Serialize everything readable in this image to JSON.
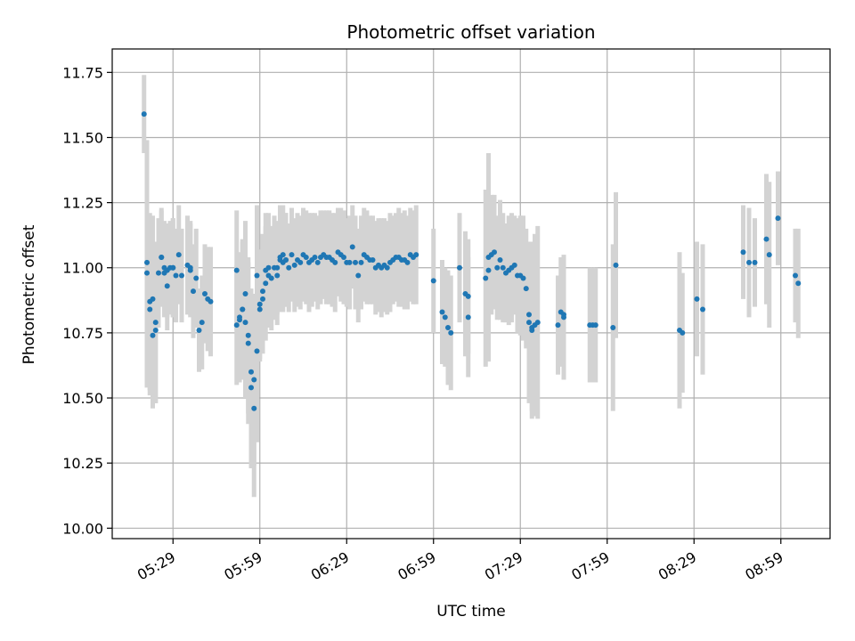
{
  "chart_data": {
    "type": "scatter",
    "title": "Photometric offset variation",
    "xlabel": "UTC time",
    "ylabel": "Photometric offset",
    "xlim": [
      "05:08",
      "09:16"
    ],
    "ylim": [
      9.96,
      11.84
    ],
    "x_ticks": [
      "05:29",
      "05:59",
      "06:29",
      "06:59",
      "07:29",
      "07:59",
      "08:29",
      "08:59"
    ],
    "y_ticks": [
      "10.00",
      "10.25",
      "10.50",
      "10.75",
      "11.00",
      "11.25",
      "11.50",
      "11.75"
    ],
    "grid": true,
    "colors": {
      "points": "#1f77b4",
      "error_bars": "#d3d3d3",
      "grid": "#b0b0b0"
    },
    "series": [
      {
        "x": [
          "05:19",
          "05:20",
          "05:20",
          "05:21",
          "05:21",
          "05:22",
          "05:22",
          "05:23",
          "05:23",
          "05:24",
          "05:25",
          "05:25",
          "05:26",
          "05:26",
          "05:27",
          "05:27",
          "05:28",
          "05:29",
          "05:29",
          "05:30",
          "05:31",
          "05:32",
          "05:34",
          "05:35",
          "05:35",
          "05:36",
          "05:37",
          "05:38",
          "05:39",
          "05:40",
          "05:41",
          "05:42",
          "05:51",
          "05:51",
          "05:52",
          "05:52",
          "05:53",
          "05:53",
          "05:54",
          "05:54",
          "05:55",
          "05:55",
          "05:56",
          "05:56",
          "05:57",
          "05:57",
          "05:58",
          "05:58",
          "05:59",
          "05:59",
          "06:00",
          "06:00",
          "06:01",
          "06:01",
          "06:02",
          "06:02",
          "06:03",
          "06:04",
          "06:05",
          "06:05",
          "06:06",
          "06:06",
          "06:07",
          "06:07",
          "06:08",
          "06:08",
          "06:09",
          "06:10",
          "06:11",
          "06:12",
          "06:13",
          "06:14",
          "06:15",
          "06:16",
          "06:17",
          "06:18",
          "06:19",
          "06:20",
          "06:21",
          "06:22",
          "06:23",
          "06:24",
          "06:25",
          "06:26",
          "06:27",
          "06:28",
          "06:29",
          "06:30",
          "06:31",
          "06:32",
          "06:33",
          "06:34",
          "06:35",
          "06:36",
          "06:37",
          "06:38",
          "06:39",
          "06:40",
          "06:41",
          "06:42",
          "06:43",
          "06:44",
          "06:45",
          "06:46",
          "06:47",
          "06:48",
          "06:49",
          "06:50",
          "06:51",
          "06:52",
          "06:53",
          "06:59",
          "07:02",
          "07:03",
          "07:04",
          "07:05",
          "07:08",
          "07:10",
          "07:11",
          "07:11",
          "07:17",
          "07:18",
          "07:18",
          "07:19",
          "07:20",
          "07:21",
          "07:22",
          "07:23",
          "07:24",
          "07:25",
          "07:26",
          "07:27",
          "07:28",
          "07:29",
          "07:30",
          "07:31",
          "07:32",
          "07:32",
          "07:33",
          "07:33",
          "07:34",
          "07:35",
          "07:42",
          "07:43",
          "07:44",
          "07:44",
          "07:53",
          "07:54",
          "07:55",
          "08:01",
          "08:02",
          "08:24",
          "08:25",
          "08:30",
          "08:32",
          "08:46",
          "08:48",
          "08:50",
          "08:54",
          "08:55",
          "08:58",
          "09:04",
          "09:05"
        ],
        "y": [
          11.59,
          11.02,
          10.98,
          10.84,
          10.87,
          10.88,
          10.74,
          10.76,
          10.79,
          10.98,
          11.04,
          11.04,
          11.0,
          10.98,
          10.93,
          10.99,
          11.0,
          11.0,
          11.0,
          10.97,
          11.05,
          10.97,
          11.01,
          10.99,
          11.0,
          10.91,
          10.96,
          10.76,
          10.79,
          10.9,
          10.88,
          10.87,
          10.99,
          10.78,
          10.8,
          10.81,
          10.84,
          10.84,
          10.9,
          10.79,
          10.74,
          10.71,
          10.54,
          10.6,
          10.57,
          10.46,
          10.68,
          10.97,
          10.84,
          10.86,
          10.88,
          10.91,
          10.94,
          10.99,
          10.97,
          11.0,
          10.96,
          11.0,
          11.0,
          10.97,
          11.03,
          11.04,
          11.02,
          11.05,
          11.03,
          11.03,
          11.0,
          11.05,
          11.01,
          11.03,
          11.02,
          11.05,
          11.04,
          11.02,
          11.03,
          11.04,
          11.02,
          11.04,
          11.05,
          11.04,
          11.04,
          11.03,
          11.02,
          11.06,
          11.05,
          11.04,
          11.02,
          11.02,
          11.08,
          11.02,
          10.97,
          11.02,
          11.05,
          11.04,
          11.03,
          11.03,
          11.0,
          11.01,
          11.0,
          11.01,
          11.0,
          11.02,
          11.03,
          11.04,
          11.04,
          11.03,
          11.03,
          11.02,
          11.05,
          11.04,
          11.05,
          10.95,
          10.83,
          10.81,
          10.77,
          10.75,
          11.0,
          10.9,
          10.89,
          10.81,
          10.96,
          11.04,
          10.99,
          11.05,
          11.06,
          11.0,
          11.03,
          11.0,
          10.98,
          10.99,
          11.0,
          11.01,
          10.97,
          10.97,
          10.96,
          10.92,
          10.82,
          10.79,
          10.76,
          10.77,
          10.78,
          10.79,
          10.78,
          10.83,
          10.82,
          10.81,
          10.78,
          10.78,
          10.78,
          10.77,
          11.01,
          10.76,
          10.75,
          10.88,
          10.84,
          11.06,
          11.02,
          11.02,
          11.11,
          11.05,
          11.19,
          10.97,
          10.94
        ],
        "yerr": [
          0.15,
          0.47,
          0.44,
          0.33,
          0.34,
          0.32,
          0.28,
          0.28,
          0.31,
          0.21,
          0.18,
          0.19,
          0.18,
          0.17,
          0.17,
          0.18,
          0.18,
          0.19,
          0.19,
          0.18,
          0.19,
          0.18,
          0.19,
          0.18,
          0.18,
          0.18,
          0.19,
          0.16,
          0.18,
          0.19,
          0.2,
          0.21,
          0.23,
          0.23,
          0.24,
          0.25,
          0.26,
          0.27,
          0.28,
          0.29,
          0.3,
          0.31,
          0.31,
          0.32,
          0.33,
          0.34,
          0.35,
          0.27,
          0.2,
          0.21,
          0.21,
          0.22,
          0.22,
          0.22,
          0.2,
          0.21,
          0.2,
          0.2,
          0.18,
          0.19,
          0.2,
          0.2,
          0.19,
          0.19,
          0.18,
          0.18,
          0.17,
          0.18,
          0.18,
          0.18,
          0.18,
          0.18,
          0.18,
          0.19,
          0.18,
          0.17,
          0.18,
          0.18,
          0.17,
          0.18,
          0.18,
          0.18,
          0.19,
          0.17,
          0.18,
          0.18,
          0.17,
          0.18,
          0.16,
          0.18,
          0.18,
          0.18,
          0.18,
          0.18,
          0.17,
          0.17,
          0.18,
          0.18,
          0.19,
          0.18,
          0.18,
          0.19,
          0.17,
          0.17,
          0.19,
          0.18,
          0.19,
          0.18,
          0.18,
          0.18,
          0.19,
          0.2,
          0.2,
          0.19,
          0.22,
          0.22,
          0.21,
          0.24,
          0.22,
          0.23,
          0.34,
          0.4,
          0.22,
          0.23,
          0.22,
          0.2,
          0.23,
          0.21,
          0.19,
          0.21,
          0.21,
          0.19,
          0.22,
          0.23,
          0.24,
          0.23,
          0.26,
          0.31,
          0.34,
          0.32,
          0.35,
          0.37,
          0.19,
          0.21,
          0.21,
          0.24,
          0.22,
          0.22,
          0.22,
          0.32,
          0.28,
          0.3,
          0.23,
          0.22,
          0.25,
          0.18,
          0.21,
          0.17,
          0.25,
          0.28,
          0.18,
          0.18,
          0.21
        ]
      }
    ]
  }
}
